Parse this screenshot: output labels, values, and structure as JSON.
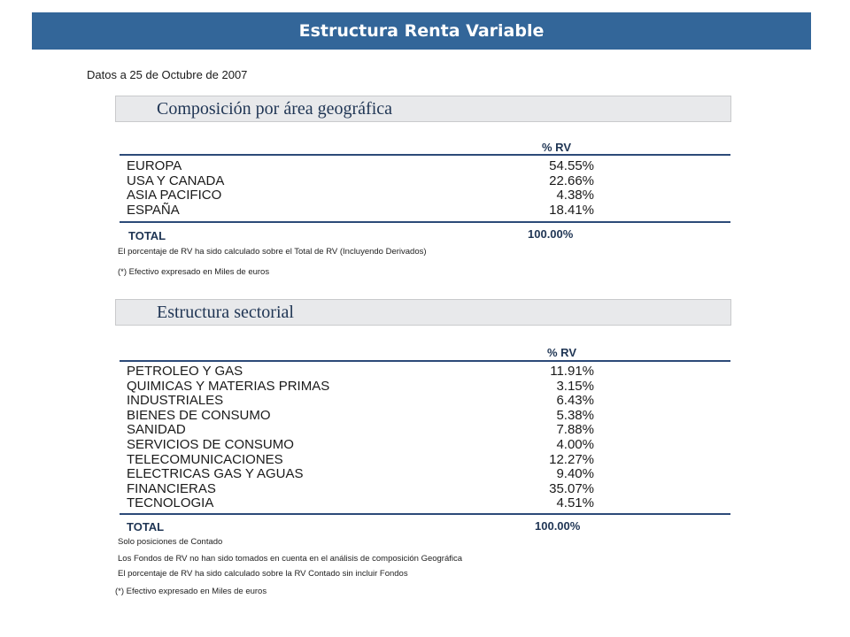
{
  "page": {
    "title": "Estructura Renta Variable",
    "date_line": "Datos a 25 de Octubre de 2007"
  },
  "geo": {
    "title": "Composición por área geográfica",
    "column_header": "% RV",
    "rows": [
      {
        "label": "EUROPA",
        "value": "54.55%"
      },
      {
        "label": "USA Y CANADA",
        "value": "22.66%"
      },
      {
        "label": "ASIA PACIFICO",
        "value": "4.38%"
      },
      {
        "label": "ESPAÑA",
        "value": "18.41%"
      }
    ],
    "total_label": "TOTAL",
    "total_value": "100.00%",
    "notes": [
      "El porcentaje de RV ha sido calculado sobre el Total de RV (Incluyendo Derivados)",
      "(*) Efectivo expresado en Miles de euros"
    ]
  },
  "sector": {
    "title": "Estructura sectorial",
    "column_header": "% RV",
    "rows": [
      {
        "label": "PETROLEO Y GAS",
        "value": "11.91%"
      },
      {
        "label": "QUIMICAS Y MATERIAS PRIMAS",
        "value": "3.15%"
      },
      {
        "label": "INDUSTRIALES",
        "value": "6.43%"
      },
      {
        "label": "BIENES DE CONSUMO",
        "value": "5.38%"
      },
      {
        "label": "SANIDAD",
        "value": "7.88%"
      },
      {
        "label": "SERVICIOS DE CONSUMO",
        "value": "4.00%"
      },
      {
        "label": "TELECOMUNICACIONES",
        "value": "12.27%"
      },
      {
        "label": "ELECTRICAS GAS Y AGUAS",
        "value": "9.40%"
      },
      {
        "label": "FINANCIERAS",
        "value": "35.07%"
      },
      {
        "label": "TECNOLOGIA",
        "value": "4.51%"
      }
    ],
    "total_label": "TOTAL",
    "total_value": "100.00%",
    "notes": [
      "Solo posiciones de Contado",
      "Los Fondos de RV no han sido tomados en cuenta en el análisis de composición Geográfica",
      "El porcentaje de RV ha sido calculado sobre la RV Contado sin incluir Fondos",
      "(*) Efectivo expresado en Miles de euros"
    ]
  },
  "colors": {
    "banner": "#336699",
    "heading_text": "#1f3554",
    "rule": "#2c4a78",
    "section_bg": "#e8e9eb"
  }
}
